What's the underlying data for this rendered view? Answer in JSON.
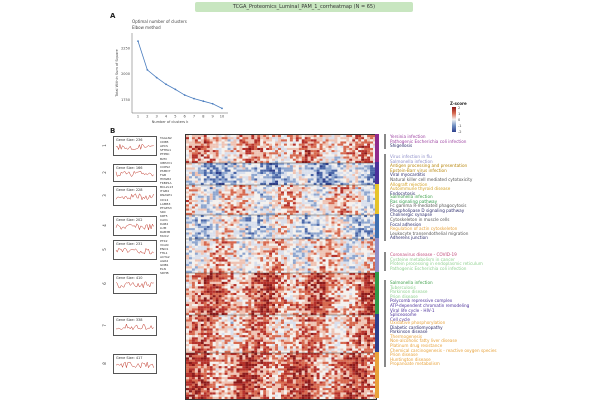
{
  "title": "TCGA_Proteomics_Luminal_PAM_1_corrheatmap (N = 65)",
  "panel_a_label": "A",
  "panel_b_label": "B",
  "legend": {
    "title": "Z-score",
    "ticks": [
      "2",
      "1",
      "0",
      "-1",
      "-2"
    ]
  },
  "chart_data": {
    "type": "line",
    "title": "Optimal number of clusters",
    "subtitle": "Elbow method",
    "xlabel": "Number of clusters k",
    "ylabel": "Total Within Sum of Square",
    "x": [
      1,
      2,
      3,
      4,
      5,
      6,
      7,
      8,
      9,
      10
    ],
    "values": [
      2320,
      2040,
      1965,
      1900,
      1850,
      1795,
      1760,
      1735,
      1710,
      1665
    ],
    "xticks": [
      "1",
      "2",
      "3",
      "4",
      "5",
      "6",
      "7",
      "8",
      "9",
      "10"
    ],
    "yticks": [
      "1750",
      "2000",
      "2250"
    ],
    "ylim": [
      1620,
      2380
    ]
  },
  "clusters": [
    {
      "id": "1",
      "gene_size": "Gene Size: 236",
      "color": "#8e2b8e"
    },
    {
      "id": "2",
      "gene_size": "Gene Size: 166",
      "color": "#4b2f9a"
    },
    {
      "id": "3",
      "gene_size": "Gene Size: 228",
      "color": "#e6c32a"
    },
    {
      "id": "4",
      "gene_size": "Gene Size: 202",
      "color": "#3f6fb0"
    },
    {
      "id": "5",
      "gene_size": "Gene Size: 231",
      "color": "#8f8fc8"
    },
    {
      "id": "6",
      "gene_size": "Gene Size: 410",
      "color": "#2f9a4a"
    },
    {
      "id": "7",
      "gene_size": "Gene Size: 338",
      "color": "#2d3f8c"
    },
    {
      "id": "8",
      "gene_size": "Gene Size: 417",
      "color": "#e8a23a"
    }
  ],
  "genes": [
    "TAGLN2",
    "CD8B",
    "APCS",
    "SFTPA1",
    "PTPRC",
    "B2M",
    "UBE2V1",
    "COPS2",
    "PSMD7",
    "FGB",
    "HMGB2",
    "FKBP1A",
    "BCL2L13",
    "ITGB4",
    "RNASE1",
    "CD14",
    "LAMB3",
    "PTGES3",
    "SRC",
    "KRT5",
    "CAV1",
    "DAB2",
    "LUM",
    "RAB3B",
    "MUC2",
    "PTK2",
    "VCAN",
    "ENO1",
    "FHL1",
    "ACTA2",
    "AGR2",
    "GNB1",
    "ELN",
    "SDHB"
  ],
  "pathways": [
    {
      "group": 1,
      "items": [
        {
          "text": "Yersinia infection",
          "color": "#9b3fa0"
        },
        {
          "text": "Pathogenic Escherichia coli infection",
          "color": "#9b3fa0"
        },
        {
          "text": "Shigellosis",
          "color": "#2a2a6a"
        }
      ]
    },
    {
      "group": 2,
      "items": [
        {
          "text": "Virus infection in flu",
          "color": "#8e8ec8"
        },
        {
          "text": "Salmonella infection",
          "color": "#8e8ec8"
        },
        {
          "text": "Antigen processing and presentation",
          "color": "#b8860b"
        },
        {
          "text": "Epstein-Barr virus infection",
          "color": "#b8860b"
        },
        {
          "text": "Viral myocarditis",
          "color": "#2a2a6a"
        },
        {
          "text": "Natural killer cell mediated cytotoxicity",
          "color": "#555"
        },
        {
          "text": "Allograft rejection",
          "color": "#d4a020"
        },
        {
          "text": "Autoimmune thyroid disease",
          "color": "#d4a020"
        },
        {
          "text": "Endocytosis",
          "color": "#2a2a6a"
        }
      ]
    },
    {
      "group": 3,
      "items": [
        {
          "text": "Salmonella infection",
          "color": "#3fa04a"
        },
        {
          "text": "Ras signaling pathway",
          "color": "#2f9a4a"
        },
        {
          "text": "Fc gamma R-mediated phagocytosis",
          "color": "#555"
        },
        {
          "text": "Phospholipase D signaling pathway",
          "color": "#2a2a6a"
        },
        {
          "text": "Cholinergic synapse",
          "color": "#2a2a6a"
        },
        {
          "text": "Cytoskeleton in muscle cells",
          "color": "#555"
        },
        {
          "text": "Focal adhesion",
          "color": "#2a2a6a"
        },
        {
          "text": "Regulation of actin cytoskeleton",
          "color": "#e8a23a"
        },
        {
          "text": "Leukocyte transendothelial migration",
          "color": "#555"
        },
        {
          "text": "Adherens junction",
          "color": "#2a2a6a"
        }
      ]
    },
    {
      "group": 4,
      "items": [
        {
          "text": "Coronavirus disease - COVID-19",
          "color": "#c04a7a"
        },
        {
          "text": "Cysteine metabolism in cancer",
          "color": "#8fd08f"
        },
        {
          "text": "Protein processing in endoplasmic reticulum",
          "color": "#8fd08f"
        },
        {
          "text": "Pathogenic Escherichia coli infection",
          "color": "#8fd08f"
        }
      ]
    },
    {
      "group": 5,
      "items": [
        {
          "text": "Salmonella infection",
          "color": "#3fa04a"
        },
        {
          "text": "Tuberculosis",
          "color": "#8fd08f"
        },
        {
          "text": "Parkinson disease",
          "color": "#8fd08f"
        },
        {
          "text": "Prion disease",
          "color": "#8fd08f"
        },
        {
          "text": "Polycomb repressive complex",
          "color": "#4b2f9a"
        },
        {
          "text": "ATP-dependent chromatin remodeling",
          "color": "#4b2f9a"
        },
        {
          "text": "Viral life cycle - HIV-1",
          "color": "#4b2f9a"
        },
        {
          "text": "Spliceosome",
          "color": "#4b2f9a"
        },
        {
          "text": "Cell cycle",
          "color": "#4b2f9a"
        }
      ]
    },
    {
      "group": 6,
      "items": [
        {
          "text": "Oxidative phosphorylation",
          "color": "#e8a23a"
        },
        {
          "text": "Diabetic cardiomyopathy",
          "color": "#2a2a6a"
        },
        {
          "text": "Parkinson disease",
          "color": "#2a2a6a"
        },
        {
          "text": "Thermogenesis",
          "color": "#e8a23a"
        },
        {
          "text": "Non-alcoholic fatty liver disease",
          "color": "#e8a23a"
        },
        {
          "text": "Platinum drug resistance",
          "color": "#e8a23a"
        },
        {
          "text": "Chemical carcinogenesis - reactive oxygen species",
          "color": "#e8a23a"
        },
        {
          "text": "Prion disease",
          "color": "#e8a23a"
        },
        {
          "text": "Huntington disease",
          "color": "#e8a23a"
        },
        {
          "text": "Propanoate metabolism",
          "color": "#e8a23a"
        }
      ]
    }
  ]
}
